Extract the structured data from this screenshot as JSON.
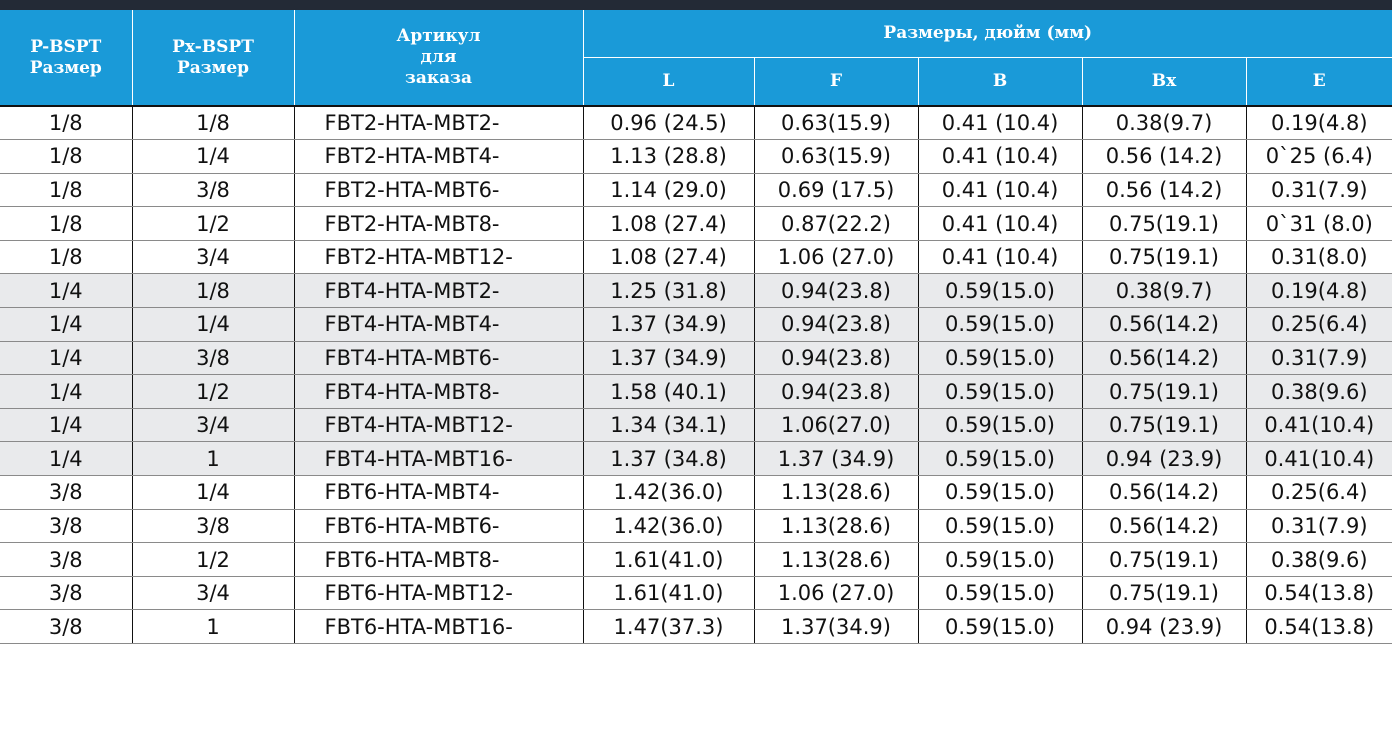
{
  "header": {
    "p_size": "P-BSPT Размер",
    "px_size": "Px-BSPT Размер",
    "article_lines": [
      "Артикул",
      "для",
      "заказа"
    ],
    "dimensions": "Размеры, дюйм (мм)",
    "columns": [
      "L",
      "F",
      "B",
      "Bx",
      "E"
    ]
  },
  "rows": [
    {
      "p": "1/8",
      "px": "1/8",
      "article": "FBT2-HTA-MBT2-",
      "L": "0.96 (24.5)",
      "F": "0.63(15.9)",
      "B": "0.41 (10.4)",
      "Bx": "0.38(9.7)",
      "E": "0.19(4.8)",
      "shaded": false
    },
    {
      "p": "1/8",
      "px": "1/4",
      "article": "FBT2-HTA-MBT4-",
      "L": "1.13 (28.8)",
      "F": "0.63(15.9)",
      "B": "0.41 (10.4)",
      "Bx": "0.56 (14.2)",
      "E": "0`25 (6.4)",
      "shaded": false
    },
    {
      "p": "1/8",
      "px": "3/8",
      "article": "FBT2-HTA-MBT6-",
      "L": "1.14 (29.0)",
      "F": "0.69 (17.5)",
      "B": "0.41 (10.4)",
      "Bx": "0.56 (14.2)",
      "E": "0.31(7.9)",
      "shaded": false
    },
    {
      "p": "1/8",
      "px": "1/2",
      "article": "FBT2-HTA-MBT8-",
      "L": "1.08 (27.4)",
      "F": "0.87(22.2)",
      "B": "0.41 (10.4)",
      "Bx": "0.75(19.1)",
      "E": "0`31 (8.0)",
      "shaded": false
    },
    {
      "p": "1/8",
      "px": "3/4",
      "article": "FBT2-HTA-MBT12-",
      "L": "1.08 (27.4)",
      "F": "1.06 (27.0)",
      "B": "0.41 (10.4)",
      "Bx": "0.75(19.1)",
      "E": "0.31(8.0)",
      "shaded": false
    },
    {
      "p": "1/4",
      "px": "1/8",
      "article": "FBT4-HTA-MBT2-",
      "L": "1.25 (31.8)",
      "F": "0.94(23.8)",
      "B": "0.59(15.0)",
      "Bx": "0.38(9.7)",
      "E": "0.19(4.8)",
      "shaded": true
    },
    {
      "p": "1/4",
      "px": "1/4",
      "article": "FBT4-HTA-MBT4-",
      "L": "1.37 (34.9)",
      "F": "0.94(23.8)",
      "B": "0.59(15.0)",
      "Bx": "0.56(14.2)",
      "E": "0.25(6.4)",
      "shaded": true
    },
    {
      "p": "1/4",
      "px": "3/8",
      "article": "FBT4-HTA-MBT6-",
      "L": "1.37 (34.9)",
      "F": "0.94(23.8)",
      "B": "0.59(15.0)",
      "Bx": "0.56(14.2)",
      "E": "0.31(7.9)",
      "shaded": true
    },
    {
      "p": "1/4",
      "px": "1/2",
      "article": "FBT4-HTA-MBT8-",
      "L": "1.58 (40.1)",
      "F": "0.94(23.8)",
      "B": "0.59(15.0)",
      "Bx": "0.75(19.1)",
      "E": "0.38(9.6)",
      "shaded": true
    },
    {
      "p": "1/4",
      "px": "3/4",
      "article": "FBT4-HTA-MBT12-",
      "L": "1.34 (34.1)",
      "F": "1.06(27.0)",
      "B": "0.59(15.0)",
      "Bx": "0.75(19.1)",
      "E": "0.41(10.4)",
      "shaded": true
    },
    {
      "p": "1/4",
      "px": "1",
      "article": "FBT4-HTA-MBT16-",
      "L": "1.37 (34.8)",
      "F": "1.37 (34.9)",
      "B": "0.59(15.0)",
      "Bx": "0.94 (23.9)",
      "E": "0.41(10.4)",
      "shaded": true
    },
    {
      "p": "3/8",
      "px": "1/4",
      "article": "FBT6-HTA-MBT4-",
      "L": "1.42(36.0)",
      "F": "1.13(28.6)",
      "B": "0.59(15.0)",
      "Bx": "0.56(14.2)",
      "E": "0.25(6.4)",
      "shaded": false
    },
    {
      "p": "3/8",
      "px": "3/8",
      "article": "FBT6-HTA-MBT6-",
      "L": "1.42(36.0)",
      "F": "1.13(28.6)",
      "B": "0.59(15.0)",
      "Bx": "0.56(14.2)",
      "E": "0.31(7.9)",
      "shaded": false
    },
    {
      "p": "3/8",
      "px": "1/2",
      "article": "FBT6-HTA-MBT8-",
      "L": "1.61(41.0)",
      "F": "1.13(28.6)",
      "B": "0.59(15.0)",
      "Bx": "0.75(19.1)",
      "E": "0.38(9.6)",
      "shaded": false
    },
    {
      "p": "3/8",
      "px": "3/4",
      "article": "FBT6-HTA-MBT12-",
      "L": "1.61(41.0)",
      "F": "1.06 (27.0)",
      "B": "0.59(15.0)",
      "Bx": "0.75(19.1)",
      "E": "0.54(13.8)",
      "shaded": false
    },
    {
      "p": "3/8",
      "px": "1",
      "article": "FBT6-HTA-MBT16-",
      "L": "1.47(37.3)",
      "F": "1.37(34.9)",
      "B": "0.59(15.0)",
      "Bx": "0.94 (23.9)",
      "E": "0.54(13.8)",
      "shaded": false
    }
  ]
}
